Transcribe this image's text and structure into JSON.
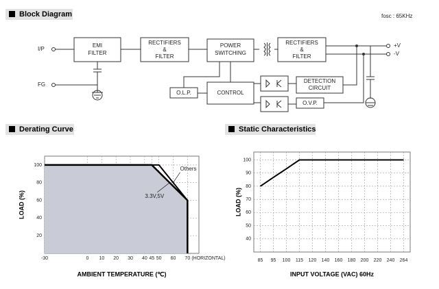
{
  "header": {
    "block_diagram": "Block Diagram",
    "fosc": "fosc : 65KHz"
  },
  "diagram": {
    "terminals": [
      "I/P",
      "FG",
      "+V",
      "-V"
    ],
    "nodes": [
      {
        "lines": [
          "EMI",
          "FILTER"
        ]
      },
      {
        "lines": [
          "RECTIFIERS",
          "&",
          "FILTER"
        ]
      },
      {
        "lines": [
          "POWER",
          "SWITCHING"
        ]
      },
      {
        "lines": [
          "RECTIFIERS",
          "&",
          "FILTER"
        ]
      },
      {
        "lines": [
          "O.L.P."
        ]
      },
      {
        "lines": [
          "CONTROL"
        ]
      },
      {
        "lines": [
          "DETECTION",
          "CIRCUIT"
        ]
      },
      {
        "lines": [
          "O.V.P."
        ]
      }
    ]
  },
  "chart_data": [
    {
      "type": "line",
      "title": "Derating Curve",
      "xlabel": "AMBIENT TEMPERATURE (℃)",
      "ylabel": "LOAD (%)",
      "xlim": [
        -30,
        78
      ],
      "ylim": [
        0,
        110
      ],
      "xticks": [
        -30,
        0,
        10,
        20,
        30,
        40,
        45,
        50,
        60,
        70
      ],
      "xtick_note": "(HORIZONTAL)",
      "yticks": [
        20,
        40,
        60,
        80,
        100
      ],
      "grid": true,
      "series": [
        {
          "name": "Others",
          "color": "#000000",
          "x": [
            -30,
            50,
            70,
            70
          ],
          "values": [
            100,
            100,
            60,
            0
          ]
        },
        {
          "name": "3.3V,5V",
          "color": "#000000",
          "fill": "#c9ccd6",
          "x": [
            -30,
            45,
            70,
            70
          ],
          "values": [
            100,
            100,
            60,
            0
          ]
        }
      ]
    },
    {
      "type": "line",
      "title": "Static Characteristics",
      "xlabel": "INPUT VOLTAGE (VAC) 60Hz",
      "ylabel": "LOAD (%)",
      "categories": [
        "85",
        "95",
        "100",
        "115",
        "120",
        "140",
        "160",
        "180",
        "200",
        "220",
        "240",
        "264"
      ],
      "values": [
        80,
        86.7,
        93.3,
        100,
        100,
        100,
        100,
        100,
        100,
        100,
        100,
        100
      ],
      "color": "#000000",
      "ylim": [
        30,
        106
      ],
      "yticks": [
        40,
        50,
        60,
        70,
        80,
        90,
        100
      ],
      "grid": true
    }
  ]
}
